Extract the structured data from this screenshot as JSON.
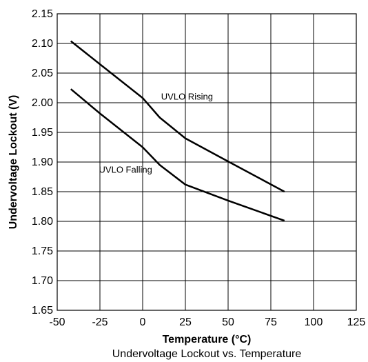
{
  "chart_data": {
    "type": "line",
    "xlabel": "Temperature (°C)",
    "ylabel": "Undervoltage Lockout (V)",
    "caption": "Undervoltage Lockout vs. Temperature",
    "xlim": [
      -50,
      125
    ],
    "ylim": [
      1.65,
      2.15
    ],
    "xticks": [
      "-50",
      "-25",
      "0",
      "25",
      "50",
      "75",
      "100",
      "125"
    ],
    "yticks": [
      "2.15",
      "2.10",
      "2.05",
      "2.00",
      "1.95",
      "1.90",
      "1.85",
      "1.80",
      "1.75",
      "1.70",
      "1.65"
    ],
    "grid": true,
    "series": [
      {
        "name": "UVLO Rising",
        "x": [
          -42,
          -25,
          0,
          10,
          25,
          50,
          83
        ],
        "y": [
          2.104,
          2.065,
          2.008,
          1.975,
          1.94,
          1.901,
          1.85
        ]
      },
      {
        "name": "UVLO Falling",
        "x": [
          -42,
          -25,
          0,
          10,
          25,
          50,
          83
        ],
        "y": [
          2.023,
          1.982,
          1.925,
          1.895,
          1.862,
          1.835,
          1.801
        ]
      }
    ],
    "annotations": [
      {
        "text": "UVLO Rising",
        "series": 0
      },
      {
        "text": "UVLO Falling",
        "series": 1
      }
    ]
  }
}
